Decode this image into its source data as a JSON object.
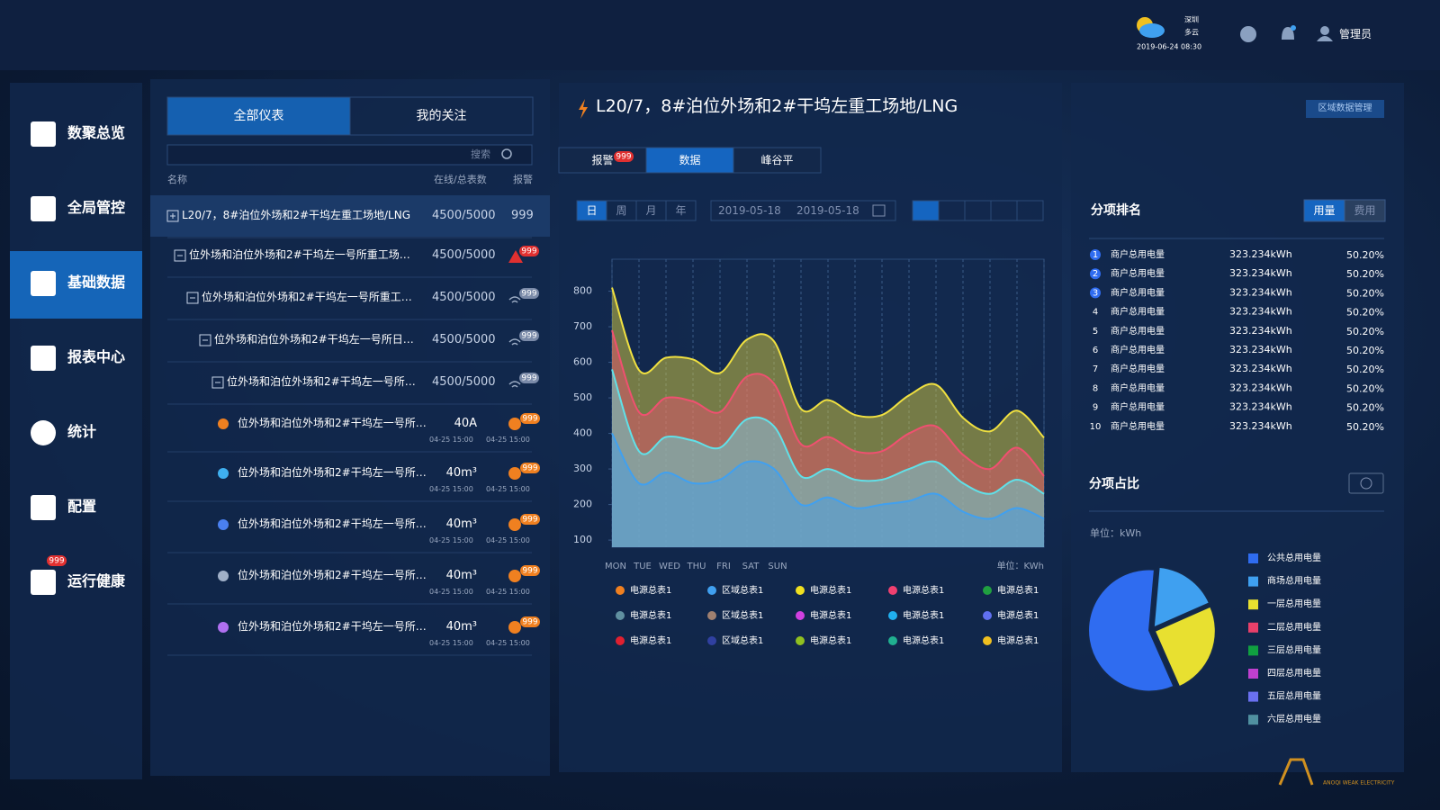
{
  "header": {
    "city": "深圳",
    "weather": "多云",
    "datetime": "2019-06-24 08:30",
    "user": "管理员"
  },
  "sidebar": {
    "items": [
      "数聚总览",
      "全局管控",
      "基础数据",
      "报表中心",
      "统计",
      "配置",
      "运行健康"
    ],
    "badge": "999"
  },
  "meters": {
    "tabs": [
      "全部仪表",
      "我的关注"
    ],
    "search": "搜索",
    "columns": [
      "名称",
      "在线/总表数",
      "报警"
    ],
    "groups": [
      {
        "name": "L20/7，8#泊位外场和2#干坞左重工场地/LNG",
        "count": "4500/5000",
        "alarm": "999"
      },
      {
        "name": "位外场和泊位外场和2#干坞左一号所重工场…",
        "count": "4500/5000",
        "alarm": "999"
      },
      {
        "name": "位外场和泊位外场和2#干坞左一号所重工…",
        "count": "4500/5000",
        "alarm": "999"
      },
      {
        "name": "位外场和泊位外场和2#干坞左一号所日…",
        "count": "4500/5000",
        "alarm": "999"
      },
      {
        "name": "位外场和泊位外场和2#干坞左一号所…",
        "count": "4500/5000",
        "alarm": "999"
      }
    ],
    "items": [
      {
        "name": "位外场和泊位外场和2#干坞左一号所…",
        "value": "40A",
        "time1": "04-25 15:00",
        "time2": "04-25 15:00",
        "alarm": "999"
      },
      {
        "name": "位外场和泊位外场和2#干坞左一号所…",
        "value": "40m³",
        "time1": "04-25 15:00",
        "time2": "04-25 15:00",
        "alarm": "999"
      },
      {
        "name": "位外场和泊位外场和2#干坞左一号所…",
        "value": "40m³",
        "time1": "04-25 15:00",
        "time2": "04-25 15:00",
        "alarm": "999"
      },
      {
        "name": "位外场和泊位外场和2#干坞左一号所…",
        "value": "40m³",
        "time1": "04-25 15:00",
        "time2": "04-25 15:00",
        "alarm": "999"
      },
      {
        "name": "位外场和泊位外场和2#干坞左一号所…",
        "value": "40m³",
        "time1": "04-25 15:00",
        "time2": "04-25 15:00",
        "alarm": "999"
      }
    ]
  },
  "detail": {
    "title": "L20/7，8#泊位外场和2#干坞左重工场地/LNG",
    "manage": "区域数据管理",
    "tabs": [
      "报警",
      "数据",
      "峰谷平"
    ],
    "tab_badge": "999",
    "periods": [
      "日",
      "周",
      "月",
      "年"
    ],
    "date_from": "2019-05-18",
    "date_to": "2019-05-18"
  },
  "ranking": {
    "title": "分项排名",
    "toggles": [
      "用量",
      "费用"
    ],
    "rows": [
      {
        "rank": 1,
        "name": "商户总用电量",
        "value": "323.234kWh",
        "share": "50.20%"
      },
      {
        "rank": 2,
        "name": "商户总用电量",
        "value": "323.234kWh",
        "share": "50.20%"
      },
      {
        "rank": 3,
        "name": "商户总用电量",
        "value": "323.234kWh",
        "share": "50.20%"
      },
      {
        "rank": 4,
        "name": "商户总用电量",
        "value": "323.234kWh",
        "share": "50.20%"
      },
      {
        "rank": 5,
        "name": "商户总用电量",
        "value": "323.234kWh",
        "share": "50.20%"
      },
      {
        "rank": 6,
        "name": "商户总用电量",
        "value": "323.234kWh",
        "share": "50.20%"
      },
      {
        "rank": 7,
        "name": "商户总用电量",
        "value": "323.234kWh",
        "share": "50.20%"
      },
      {
        "rank": 8,
        "name": "商户总用电量",
        "value": "323.234kWh",
        "share": "50.20%"
      },
      {
        "rank": 9,
        "name": "商户总用电量",
        "value": "323.234kWh",
        "share": "50.20%"
      },
      {
        "rank": 10,
        "name": "商户总用电量",
        "value": "323.234kWh",
        "share": "50.20%"
      }
    ]
  },
  "chart_data": [
    {
      "type": "area",
      "unit_label": "单位：KWh",
      "categories": [
        "MON",
        "TUE",
        "WED",
        "THU",
        "FRI",
        "SAT",
        "SUN",
        null,
        null,
        null,
        null,
        null,
        null,
        null,
        null,
        null,
        null
      ],
      "ylim": [
        80,
        890
      ],
      "yticks": [
        100,
        200,
        300,
        400,
        500,
        600,
        700,
        800
      ],
      "grid": true,
      "series": [
        {
          "color": "#f0e040",
          "values": [
            810,
            578,
            613,
            608,
            570,
            664,
            659,
            469,
            494,
            452,
            452,
            507,
            537,
            444,
            406,
            464,
            388
          ]
        },
        {
          "color": "#f05070",
          "values": [
            690,
            460,
            500,
            490,
            460,
            560,
            540,
            370,
            390,
            350,
            350,
            400,
            420,
            340,
            300,
            360,
            280
          ]
        },
        {
          "color": "#60e0e8",
          "values": [
            580,
            350,
            390,
            380,
            360,
            440,
            420,
            280,
            300,
            270,
            270,
            300,
            320,
            260,
            230,
            270,
            230
          ]
        },
        {
          "color": "#40a0f0",
          "values": [
            400,
            260,
            290,
            260,
            270,
            320,
            300,
            200,
            220,
            190,
            200,
            210,
            230,
            180,
            160,
            190,
            160
          ]
        }
      ],
      "legend": [
        {
          "name": "电源总表1",
          "color": "#f08020"
        },
        {
          "name": "区域总表1",
          "color": "#40a0f0"
        },
        {
          "name": "电源总表1",
          "color": "#f0e020"
        },
        {
          "name": "电源总表1",
          "color": "#f04070"
        },
        {
          "name": "电源总表1",
          "color": "#20a040"
        },
        {
          "name": "电源总表1",
          "color": "#6090a0"
        },
        {
          "name": "区域总表1",
          "color": "#a08070"
        },
        {
          "name": "电源总表1",
          "color": "#d040e0"
        },
        {
          "name": "电源总表1",
          "color": "#20b0f0"
        },
        {
          "name": "电源总表1",
          "color": "#6070f0"
        },
        {
          "name": "电源总表1",
          "color": "#e02030"
        },
        {
          "name": "区域总表1",
          "color": "#3040a0"
        },
        {
          "name": "电源总表1",
          "color": "#90c020"
        },
        {
          "name": "电源总表1",
          "color": "#20b090"
        },
        {
          "name": "电源总表1",
          "color": "#f0c020"
        }
      ]
    },
    {
      "type": "pie",
      "title": "分项占比",
      "unit_label": "单位：kWh",
      "categories": [
        "公共总用电量",
        "商场总用电量",
        "一层总用电量",
        "二层总用电量",
        "三层总用电量",
        "四层总用电量",
        "五层总用电量",
        "六层总用电量"
      ],
      "colors": [
        "#2f6cf0",
        "#3fa0f0",
        "#e8e030",
        "#e8406a",
        "#10a040",
        "#c040d0",
        "#6a70f0",
        "#5090a0"
      ],
      "values": [
        58,
        17,
        25,
        0,
        0,
        0,
        0,
        0
      ]
    }
  ],
  "brand": "ANOQI WEAK ELECTRICITY"
}
